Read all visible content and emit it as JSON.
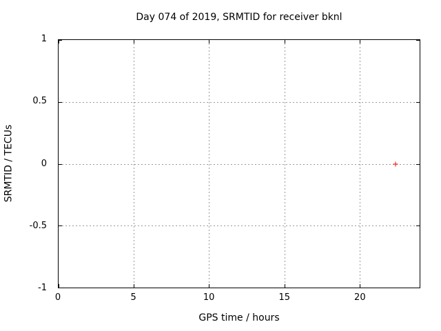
{
  "chart_data": {
    "type": "scatter",
    "title": "Day 074 of 2019, SRMTID for receiver bknl",
    "xlabel": "GPS time / hours",
    "ylabel": "SRMTID / TECUs",
    "xlim": [
      0,
      24
    ],
    "ylim": [
      -1,
      1
    ],
    "xticks": [
      0,
      5,
      10,
      15,
      20
    ],
    "xtick_labels": [
      "0",
      "5",
      "10",
      "15",
      "20"
    ],
    "yticks": [
      -1,
      -0.5,
      0,
      0.5,
      1
    ],
    "ytick_labels": [
      "-1",
      "-0.5",
      "0",
      "0.5",
      "1"
    ],
    "grid": true,
    "legend": "none",
    "series": [
      {
        "name": "SRMTID",
        "marker": "plus",
        "color": "#ff0000",
        "points": [
          {
            "x": 22.4,
            "y": 0
          }
        ]
      }
    ],
    "colors": {
      "background": "#ffffff",
      "border": "#000000",
      "grid": "#999999",
      "text": "#000000",
      "marker": "#ff0000"
    }
  }
}
